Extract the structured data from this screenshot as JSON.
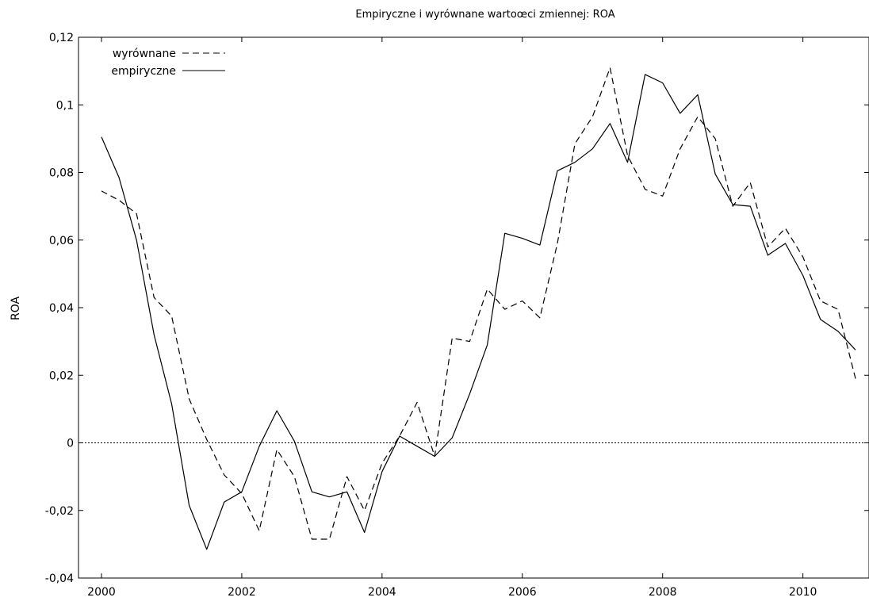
{
  "chart_data": {
    "type": "line",
    "title": "Empiryczne i wyrównane wartoœci zmiennej: ROA",
    "xlabel": "",
    "ylabel": "ROA",
    "xlim": [
      2000,
      2010.75
    ],
    "ylim": [
      -0.04,
      0.12
    ],
    "x_ticks": [
      2000,
      2002,
      2004,
      2006,
      2008,
      2010
    ],
    "x_tick_labels": [
      "2000",
      "2002",
      "2004",
      "2006",
      "2008",
      "2010"
    ],
    "y_ticks": [
      -0.04,
      -0.02,
      0,
      0.02,
      0.04,
      0.06,
      0.08,
      0.1,
      0.12
    ],
    "y_tick_labels": [
      "-0,04",
      "-0,02",
      "0",
      "0,02",
      "0,04",
      "0,06",
      "0,08",
      "0,1",
      "0,12"
    ],
    "zero_line": 0,
    "grid": false,
    "legend_position": "top-left",
    "x": [
      2000.0,
      2000.25,
      2000.5,
      2000.75,
      2001.0,
      2001.25,
      2001.5,
      2001.75,
      2002.0,
      2002.25,
      2002.5,
      2002.75,
      2003.0,
      2003.25,
      2003.5,
      2003.75,
      2004.0,
      2004.25,
      2004.5,
      2004.75,
      2005.0,
      2005.25,
      2005.5,
      2005.75,
      2006.0,
      2006.25,
      2006.5,
      2006.75,
      2007.0,
      2007.25,
      2007.5,
      2007.75,
      2008.0,
      2008.25,
      2008.5,
      2008.75,
      2009.0,
      2009.25,
      2009.5,
      2009.75,
      2010.0,
      2010.25,
      2010.5,
      2010.75
    ],
    "series": [
      {
        "name": "wyrównane",
        "style": "dashed",
        "values": [
          0.0745,
          0.0718,
          0.0678,
          0.043,
          0.0375,
          0.013,
          0.001,
          -0.0095,
          -0.015,
          -0.026,
          -0.002,
          -0.01,
          -0.0285,
          -0.0285,
          -0.01,
          -0.02,
          -0.006,
          0.002,
          0.012,
          -0.004,
          0.031,
          0.03,
          0.0455,
          0.0395,
          0.042,
          0.037,
          0.059,
          0.0885,
          0.0965,
          0.111,
          0.085,
          0.075,
          0.073,
          0.087,
          0.0965,
          0.09,
          0.07,
          0.077,
          0.058,
          0.0635,
          0.055,
          0.042,
          0.0395,
          0.019
        ]
      },
      {
        "name": "empiryczne",
        "style": "solid",
        "values": [
          0.0905,
          0.0785,
          0.06,
          0.032,
          0.0115,
          -0.0185,
          -0.0315,
          -0.0175,
          -0.0145,
          -0.001,
          0.0095,
          0.0005,
          -0.0145,
          -0.016,
          -0.0145,
          -0.0265,
          -0.0085,
          0.002,
          -0.001,
          -0.004,
          0.0015,
          0.0145,
          0.029,
          0.062,
          0.0605,
          0.0585,
          0.0805,
          0.083,
          0.087,
          0.0945,
          0.083,
          0.109,
          0.1065,
          0.0975,
          0.103,
          0.0795,
          0.0705,
          0.07,
          0.0555,
          0.059,
          0.0495,
          0.0365,
          0.033,
          0.0275
        ]
      }
    ]
  }
}
